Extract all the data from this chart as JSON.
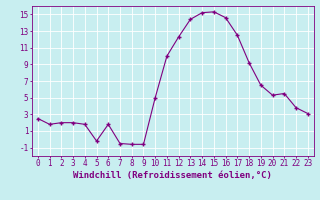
{
  "x": [
    0,
    1,
    2,
    3,
    4,
    5,
    6,
    7,
    8,
    9,
    10,
    11,
    12,
    13,
    14,
    15,
    16,
    17,
    18,
    19,
    20,
    21,
    22,
    23
  ],
  "y": [
    2.5,
    1.8,
    2.0,
    2.0,
    1.8,
    -0.2,
    1.8,
    -0.5,
    -0.6,
    -0.6,
    5.0,
    10.0,
    12.3,
    14.4,
    15.2,
    15.3,
    14.6,
    12.5,
    9.2,
    6.5,
    5.3,
    5.5,
    3.8,
    3.1
  ],
  "line_color": "#800080",
  "marker": "+",
  "marker_size": 3,
  "bg_color": "#c8eef0",
  "grid_color": "#ffffff",
  "xlabel": "Windchill (Refroidissement éolien,°C)",
  "ylabel": "",
  "xlim": [
    -0.5,
    23.5
  ],
  "ylim": [
    -2,
    16
  ],
  "yticks": [
    -1,
    1,
    3,
    5,
    7,
    9,
    11,
    13,
    15
  ],
  "xticks": [
    0,
    1,
    2,
    3,
    4,
    5,
    6,
    7,
    8,
    9,
    10,
    11,
    12,
    13,
    14,
    15,
    16,
    17,
    18,
    19,
    20,
    21,
    22,
    23
  ],
  "label_color": "#800080",
  "tick_color": "#800080",
  "font_size": 5.5,
  "xlabel_font_size": 6.5
}
